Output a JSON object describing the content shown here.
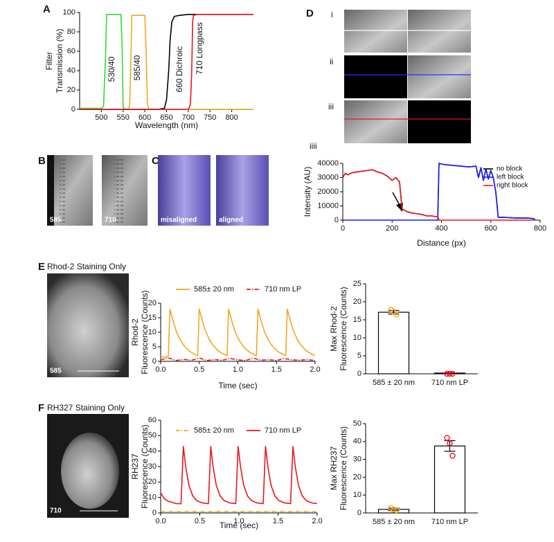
{
  "figure": {
    "panel_labels": [
      "A",
      "B",
      "C",
      "D",
      "E",
      "F"
    ],
    "B": {
      "labels": [
        "585",
        "710"
      ]
    },
    "C": {
      "labels": [
        "misaligned",
        "aligned"
      ]
    },
    "D": {
      "labels": [
        "i",
        "ii",
        "iii",
        "iiii"
      ]
    },
    "E": {
      "title": "Rhod-2 Staining Only",
      "label": "585"
    },
    "F": {
      "title": "RH327 Staining Only",
      "label": "710"
    }
  },
  "chart_data": [
    {
      "type": "line",
      "xlabel": "Wavelength (nm)",
      "ylabel": [
        "Filter",
        "Transmission (%)"
      ],
      "xlim": [
        450,
        850
      ],
      "xticks": [
        500,
        550,
        600,
        650,
        700,
        750,
        800
      ],
      "ylim": [
        0,
        100
      ],
      "yticks": [
        0,
        20,
        40,
        60,
        80,
        100
      ],
      "annotations": [
        "530/40",
        "585/40",
        "660 Dichroic",
        "710 Longpass"
      ],
      "series": [
        {
          "color": "#2edb2e",
          "linestyle": "solid",
          "x": [
            450,
            500,
            505,
            510,
            512,
            545,
            548,
            550,
            555,
            850
          ],
          "values": [
            1,
            1,
            3,
            60,
            98,
            98,
            60,
            2,
            0,
            0
          ]
        },
        {
          "color": "#f3a521",
          "linestyle": "solid",
          "x": [
            450,
            560,
            565,
            568,
            570,
            600,
            603,
            606,
            610,
            850
          ],
          "values": [
            0,
            0,
            3,
            50,
            97,
            97,
            60,
            5,
            0,
            0
          ]
        },
        {
          "color": "#000000",
          "linestyle": "solid",
          "x": [
            450,
            630,
            645,
            650,
            655,
            658,
            662,
            668,
            680,
            700,
            720,
            850
          ],
          "values": [
            0,
            0,
            1,
            10,
            40,
            70,
            90,
            96,
            97,
            98,
            98,
            98
          ]
        },
        {
          "color": "#e8141c",
          "linestyle": "solid",
          "x": [
            450,
            700,
            705,
            708,
            710,
            712,
            720,
            850
          ],
          "values": [
            0,
            0,
            5,
            40,
            90,
            97,
            98,
            98
          ]
        }
      ]
    },
    {
      "type": "line",
      "xlabel": "Distance (px)",
      "ylabel": [
        "Intensity (AU)"
      ],
      "xlim": [
        0,
        800
      ],
      "xticks": [
        0,
        200,
        400,
        600,
        800
      ],
      "ylim": [
        0,
        40000
      ],
      "yticks": [
        0,
        10000,
        20000,
        30000,
        40000
      ],
      "legend": "upper right",
      "series": [
        {
          "name": "no block",
          "color": "#000000",
          "linestyle": "solid",
          "x": [
            0,
            10,
            20,
            40,
            60,
            80,
            100,
            120,
            140,
            160,
            180,
            200,
            215,
            230,
            240,
            260,
            280,
            300,
            320,
            340,
            360,
            375,
            385,
            390,
            400,
            420,
            450,
            480,
            510,
            540,
            550,
            560,
            570,
            580,
            590,
            600,
            610,
            620,
            630,
            650,
            700,
            750,
            775,
            780
          ],
          "values": [
            30000,
            33000,
            32000,
            33500,
            34000,
            34500,
            35000,
            35500,
            34000,
            33000,
            31000,
            28000,
            30000,
            27000,
            8000,
            6000,
            5000,
            4500,
            4000,
            3000,
            3000,
            2500,
            2500,
            40000,
            39500,
            39000,
            38500,
            38000,
            37500,
            38000,
            30000,
            37000,
            28000,
            36000,
            29000,
            35000,
            30000,
            20000,
            2000,
            2000,
            1500,
            1500,
            1000,
            0
          ]
        },
        {
          "name": "left block",
          "color": "#1a1aff",
          "linestyle": "solid",
          "x": [
            0,
            385,
            390,
            400,
            420,
            450,
            480,
            510,
            540,
            550,
            560,
            570,
            580,
            590,
            600,
            610,
            620,
            630,
            650,
            700,
            750,
            775,
            780
          ],
          "values": [
            0,
            0,
            40000,
            39500,
            39000,
            38500,
            38000,
            37500,
            38000,
            30000,
            37000,
            28000,
            36000,
            29000,
            35000,
            30000,
            20000,
            2000,
            2000,
            1500,
            1500,
            1000,
            0
          ]
        },
        {
          "name": "right block",
          "color": "#e8141c",
          "linestyle": "solid",
          "x": [
            0,
            10,
            20,
            40,
            60,
            80,
            100,
            120,
            140,
            160,
            180,
            200,
            215,
            230,
            240,
            260,
            280,
            300,
            320,
            340,
            360,
            375,
            385,
            390,
            780
          ],
          "values": [
            30000,
            33000,
            32000,
            33500,
            34000,
            34500,
            35000,
            35500,
            34000,
            33000,
            31000,
            28000,
            30000,
            27000,
            8000,
            6000,
            5000,
            4500,
            4000,
            3000,
            3000,
            2500,
            2500,
            0,
            0
          ]
        }
      ]
    },
    {
      "type": "line",
      "xlabel": "Time (sec)",
      "ylabel": [
        "Rhod-2",
        "Fluorescence (Counts)"
      ],
      "xlim": [
        0,
        2
      ],
      "xticks": [
        {
          "value": 0,
          "label": "0.0"
        },
        0.5,
        {
          "value": 1,
          "label": "1.0"
        },
        1.5,
        {
          "value": 2,
          "label": "2.0"
        }
      ],
      "ylim": [
        0,
        20
      ],
      "yticks": [
        0,
        5,
        10,
        15,
        20
      ],
      "legend": "upper center",
      "series": [
        {
          "name": "585± 20 nm",
          "color": "#f3a521",
          "linestyle": "solid",
          "x": [
            0,
            0.08,
            0.1,
            0.12,
            0.16,
            0.2,
            0.25,
            0.3,
            0.35,
            0.4,
            0.46,
            0.48,
            0.5,
            0.54,
            0.58,
            0.63,
            0.68,
            0.73,
            0.78,
            0.84,
            0.86,
            0.88,
            0.92,
            0.96,
            1.01,
            1.06,
            1.11,
            1.16,
            1.22,
            1.24,
            1.26,
            1.3,
            1.34,
            1.39,
            1.44,
            1.49,
            1.54,
            1.6,
            1.62,
            1.64,
            1.68,
            1.72,
            1.77,
            1.82,
            1.87,
            1.92,
            1.98,
            2.0
          ],
          "values": [
            1.5,
            1.5,
            2,
            18,
            14,
            10.5,
            7.5,
            5.5,
            4,
            3,
            2.2,
            2,
            18,
            14,
            10.5,
            7.5,
            5.5,
            4,
            3,
            2.2,
            2,
            18,
            14,
            10.5,
            7.5,
            5.5,
            4,
            3,
            2.2,
            2,
            18,
            14,
            10.5,
            7.5,
            5.5,
            4,
            3,
            2.2,
            2,
            18,
            14,
            10.5,
            7.5,
            5.5,
            4,
            3,
            2.2,
            2
          ]
        },
        {
          "name": "710 nm LP",
          "color": "#e8141c",
          "linestyle": "dashdot",
          "x": [
            0,
            0.1,
            0.2,
            0.3,
            0.4,
            0.5,
            0.6,
            0.7,
            0.8,
            0.9,
            1.0,
            1.1,
            1.2,
            1.3,
            1.4,
            1.5,
            1.6,
            1.7,
            1.8,
            1.9,
            2.0
          ],
          "values": [
            0.5,
            1.2,
            0.3,
            0.7,
            0.4,
            1.1,
            0.3,
            0.6,
            0.4,
            1.0,
            0.5,
            0.3,
            1.1,
            0.4,
            0.6,
            0.3,
            1.0,
            0.5,
            0.4,
            0.6,
            0.3
          ]
        }
      ]
    },
    {
      "type": "bar",
      "ylabel": [
        "Max Rhod-2",
        "Fluorescence (Counts)"
      ],
      "categories": [
        "585 ± 20 nm",
        "710 nm LP"
      ],
      "values": [
        17.1,
        0.2
      ],
      "errors": [
        0.5,
        0
      ],
      "points": [
        [
          17.8,
          17.2,
          16.5
        ],
        [
          0,
          0,
          0
        ]
      ],
      "point_colors": [
        "#f3a521",
        "#e8141c"
      ],
      "ylim": [
        0,
        25
      ],
      "yticks": [
        0,
        5,
        10,
        15,
        20,
        25
      ]
    },
    {
      "type": "line",
      "xlabel": "Time (sec)",
      "ylabel": [
        "RH237",
        "Fluorescence (Counts)"
      ],
      "xlim": [
        0,
        2
      ],
      "xticks": [
        {
          "value": 0,
          "label": "0.0"
        },
        0.5,
        {
          "value": 1,
          "label": "1.0"
        },
        1.5,
        {
          "value": 2,
          "label": "2.0"
        }
      ],
      "ylim": [
        0,
        60
      ],
      "yticks": [
        0,
        10,
        20,
        30,
        40,
        50,
        60
      ],
      "legend": "upper center",
      "series": [
        {
          "name": "585± 20 nm",
          "color": "#f3a521",
          "linestyle": "dashdot",
          "x": [
            0,
            0.5,
            1,
            1.5,
            2
          ],
          "values": [
            0.8,
            0.8,
            0.8,
            0.8,
            0.8
          ]
        },
        {
          "name": "710 nm LP",
          "color": "#e8141c",
          "linestyle": "solid",
          "x": [
            0,
            0.05,
            0.1,
            0.2,
            0.26,
            0.29,
            0.32,
            0.36,
            0.41,
            0.46,
            0.53,
            0.61,
            0.64,
            0.67,
            0.71,
            0.76,
            0.81,
            0.88,
            0.96,
            0.99,
            1.02,
            1.06,
            1.11,
            1.16,
            1.23,
            1.31,
            1.34,
            1.37,
            1.41,
            1.46,
            1.51,
            1.58,
            1.66,
            1.69,
            1.72,
            1.76,
            1.81,
            1.86,
            1.93,
            2.0
          ],
          "values": [
            13,
            9,
            7.5,
            6,
            6,
            43,
            30,
            18,
            11,
            8,
            6.5,
            6,
            43,
            30,
            18,
            11,
            8,
            6.5,
            6,
            43,
            30,
            18,
            11,
            8,
            6.5,
            6,
            43,
            30,
            18,
            11,
            8,
            6.5,
            6,
            43,
            30,
            18,
            11,
            8,
            6.5,
            6
          ]
        }
      ]
    },
    {
      "type": "bar",
      "ylabel": [
        "Max RH237",
        "Fluorescence (Counts)"
      ],
      "categories": [
        "585 ± 20 nm",
        "710 nm LP"
      ],
      "values": [
        2,
        37.5
      ],
      "errors": [
        0.7,
        3
      ],
      "points": [
        [
          2.8,
          1.8,
          1.5
        ],
        [
          42,
          39,
          32
        ]
      ],
      "point_colors": [
        "#f3a521",
        "#e8141c"
      ],
      "ylim": [
        0,
        50
      ],
      "yticks": [
        0,
        10,
        20,
        30,
        40,
        50
      ]
    }
  ]
}
